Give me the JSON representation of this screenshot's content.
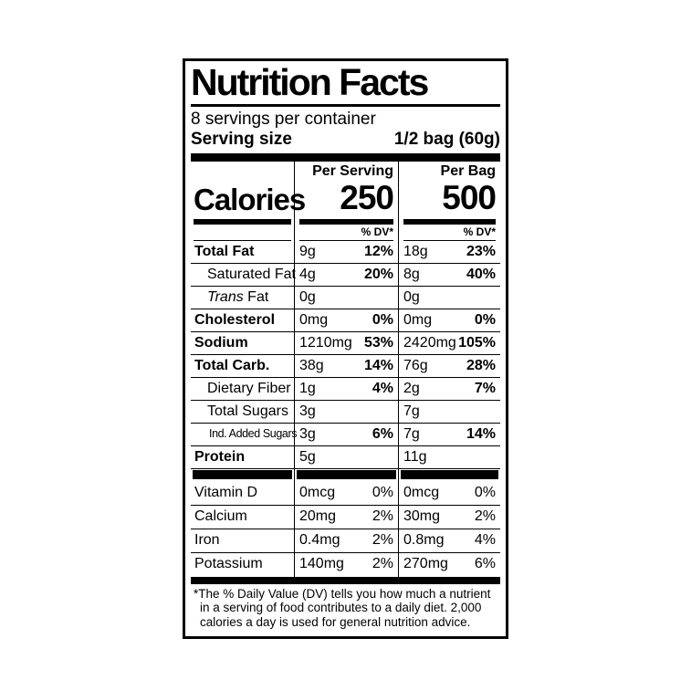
{
  "title": "Nutrition Facts",
  "servings_per_container": "8 servings per container",
  "serving_size": {
    "label": "Serving size",
    "value": "1/2 bag (60g)"
  },
  "calories": {
    "label": "Calories",
    "per_serving": {
      "header": "Per Serving",
      "value": "250",
      "dv_header": "% DV*"
    },
    "per_bag": {
      "header": "Per Bag",
      "value": "500",
      "dv_header": "% DV*"
    }
  },
  "nutrients": [
    {
      "name": "Total Fat",
      "bold": true,
      "indent": 0,
      "italic_first": false,
      "serving_amount": "9g",
      "serving_dv": "12%",
      "bag_amount": "18g",
      "bag_dv": "23%",
      "dv_bold": true
    },
    {
      "name": "Saturated Fat",
      "bold": false,
      "indent": 1,
      "italic_first": false,
      "serving_amount": "4g",
      "serving_dv": "20%",
      "bag_amount": "8g",
      "bag_dv": "40%",
      "dv_bold": true
    },
    {
      "name": "Trans Fat",
      "bold": false,
      "indent": 1,
      "italic_first": true,
      "serving_amount": "0g",
      "serving_dv": "",
      "bag_amount": "0g",
      "bag_dv": "",
      "dv_bold": true
    },
    {
      "name": "Cholesterol",
      "bold": true,
      "indent": 0,
      "italic_first": false,
      "serving_amount": "0mg",
      "serving_dv": "0%",
      "bag_amount": "0mg",
      "bag_dv": "0%",
      "dv_bold": true
    },
    {
      "name": "Sodium",
      "bold": true,
      "indent": 0,
      "italic_first": false,
      "serving_amount": "1210mg",
      "serving_dv": "53%",
      "bag_amount": "2420mg",
      "bag_dv": "105%",
      "dv_bold": true
    },
    {
      "name": "Total Carb.",
      "bold": true,
      "indent": 0,
      "italic_first": false,
      "serving_amount": "38g",
      "serving_dv": "14%",
      "bag_amount": "76g",
      "bag_dv": "28%",
      "dv_bold": true
    },
    {
      "name": "Dietary Fiber",
      "bold": false,
      "indent": 1,
      "italic_first": false,
      "serving_amount": "1g",
      "serving_dv": "4%",
      "bag_amount": "2g",
      "bag_dv": "7%",
      "dv_bold": true
    },
    {
      "name": "Total Sugars",
      "bold": false,
      "indent": 1,
      "italic_first": false,
      "serving_amount": "3g",
      "serving_dv": "",
      "bag_amount": "7g",
      "bag_dv": "",
      "dv_bold": true
    },
    {
      "name": "Ind. Added Sugars",
      "bold": false,
      "indent": 2,
      "italic_first": false,
      "serving_amount": "3g",
      "serving_dv": "6%",
      "bag_amount": "7g",
      "bag_dv": "14%",
      "dv_bold": true
    },
    {
      "name": "Protein",
      "bold": true,
      "indent": 0,
      "italic_first": false,
      "serving_amount": "5g",
      "serving_dv": "",
      "bag_amount": "11g",
      "bag_dv": "",
      "dv_bold": true
    }
  ],
  "vitamins": [
    {
      "name": "Vitamin D",
      "bold": false,
      "indent": 0,
      "italic_first": false,
      "serving_amount": "0mcg",
      "serving_dv": "0%",
      "bag_amount": "0mcg",
      "bag_dv": "0%",
      "dv_bold": false
    },
    {
      "name": "Calcium",
      "bold": false,
      "indent": 0,
      "italic_first": false,
      "serving_amount": "20mg",
      "serving_dv": "2%",
      "bag_amount": "30mg",
      "bag_dv": "2%",
      "dv_bold": false
    },
    {
      "name": "Iron",
      "bold": false,
      "indent": 0,
      "italic_first": false,
      "serving_amount": "0.4mg",
      "serving_dv": "2%",
      "bag_amount": "0.8mg",
      "bag_dv": "4%",
      "dv_bold": false
    },
    {
      "name": "Potassium",
      "bold": false,
      "indent": 0,
      "italic_first": false,
      "serving_amount": "140mg",
      "serving_dv": "2%",
      "bag_amount": "270mg",
      "bag_dv": "6%",
      "dv_bold": false
    }
  ],
  "footnote": "*The % Daily Value (DV) tells you how much a nutrient in a serving of food contributes to a daily diet. 2,000 calories a day is used for general nutrition advice.",
  "colors": {
    "ink": "#000000",
    "paper": "#ffffff"
  }
}
